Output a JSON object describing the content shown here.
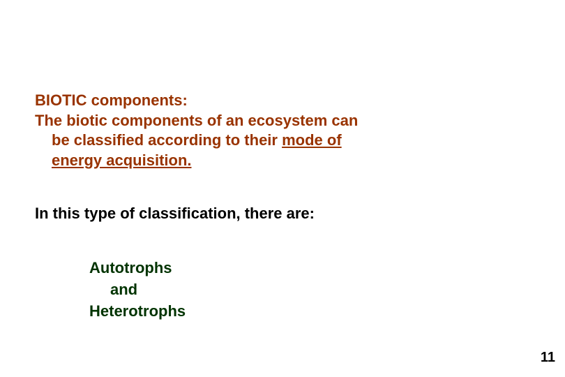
{
  "colors": {
    "heading": "#993300",
    "body": "#000000",
    "list": "#003300",
    "background": "#ffffff"
  },
  "typography": {
    "font_family": "Arial",
    "base_fontsize_pt": 16,
    "weight": "bold",
    "line_height": 1.3
  },
  "section1": {
    "title": "BIOTIC components:",
    "line1": "The biotic components of an ecosystem can",
    "line2a": "be classified according to their ",
    "line2b_underlined": "mode of",
    "line3_underlined": "energy acquisition.",
    "underlined_full": "mode of energy acquisition."
  },
  "section2": {
    "text": "In this type of classification, there are:"
  },
  "section3": {
    "item1": "Autotrophs",
    "joiner": "and",
    "item2": "Heterotrophs"
  },
  "page_number": "11"
}
